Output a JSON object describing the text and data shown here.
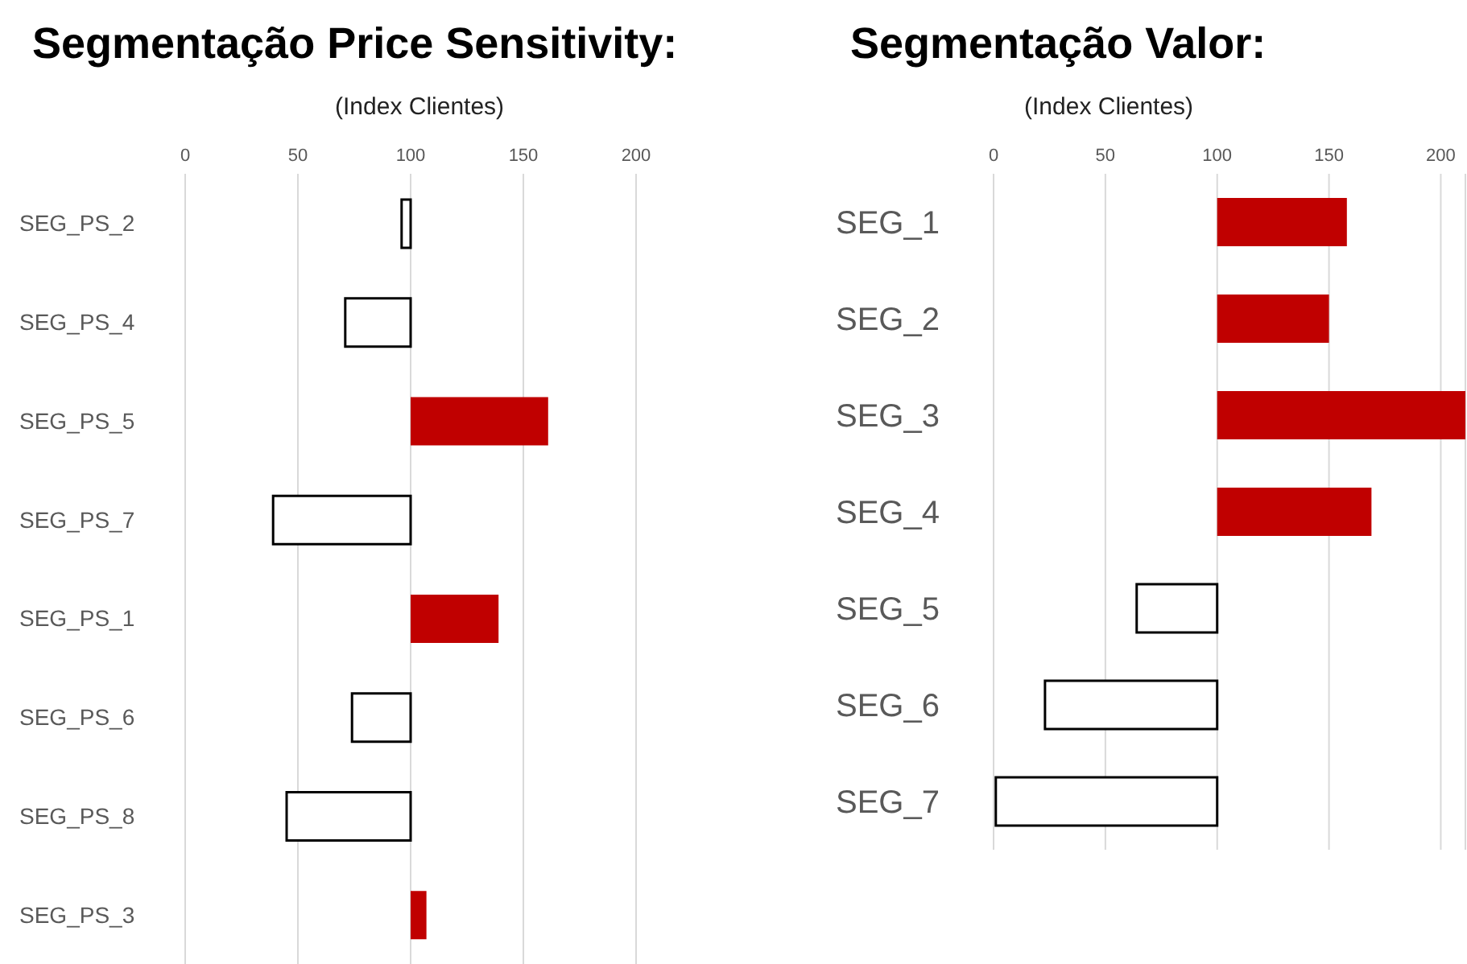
{
  "chart_data": [
    {
      "type": "bar",
      "orientation": "horizontal",
      "title": "Segmentação Price Sensitivity:",
      "subtitle": "(Index Clientes)",
      "categories": [
        "SEG_PS_2",
        "SEG_PS_4",
        "SEG_PS_5",
        "SEG_PS_7",
        "SEG_PS_1",
        "SEG_PS_6",
        "SEG_PS_8",
        "SEG_PS_3"
      ],
      "base": [
        100,
        100,
        100,
        100,
        100,
        100,
        100,
        100
      ],
      "values": [
        -4,
        -29,
        61,
        -61,
        39,
        -26,
        -55,
        7
      ],
      "colors": [
        "#ffffff",
        "#ffffff",
        "#c00000",
        "#ffffff",
        "#c00000",
        "#ffffff",
        "#ffffff",
        "#c00000"
      ],
      "xlim": [
        0,
        200
      ],
      "xticks": [
        0,
        50,
        100,
        150,
        200
      ],
      "grid": "x"
    },
    {
      "type": "bar",
      "orientation": "horizontal",
      "title": "Segmentação Valor:",
      "subtitle": "(Index Clientes)",
      "categories": [
        "SEG_1",
        "SEG_2",
        "SEG_3",
        "SEG_4",
        "SEG_5",
        "SEG_6",
        "SEG_7"
      ],
      "base": [
        100,
        100,
        100,
        100,
        100,
        100,
        100
      ],
      "values": [
        58,
        50,
        111,
        69,
        -36,
        -77,
        -99
      ],
      "colors": [
        "#c00000",
        "#c00000",
        "#c00000",
        "#c00000",
        "#ffffff",
        "#ffffff",
        "#ffffff"
      ],
      "xlim": [
        0,
        211
      ],
      "xticks": [
        0,
        50,
        100,
        150,
        200
      ],
      "grid": "x"
    }
  ]
}
